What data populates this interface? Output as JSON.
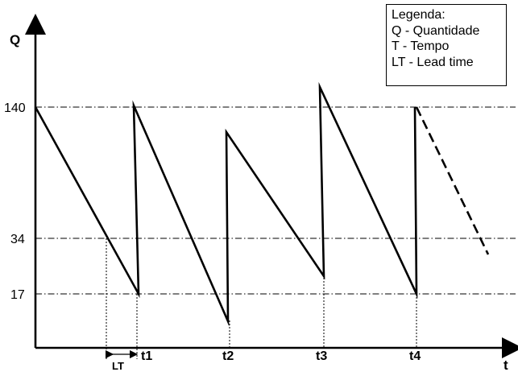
{
  "axes": {
    "y_label": "Q",
    "x_label": "t",
    "y_ticks": [
      "140",
      "34",
      "17"
    ],
    "x_ticks": [
      "t1",
      "t2",
      "t3",
      "t4"
    ],
    "lead_time_label": "LT"
  },
  "legend": {
    "title": "Legenda:",
    "items": [
      "Q - Quantidade",
      "T - Tempo",
      "LT - Lead time"
    ]
  }
}
